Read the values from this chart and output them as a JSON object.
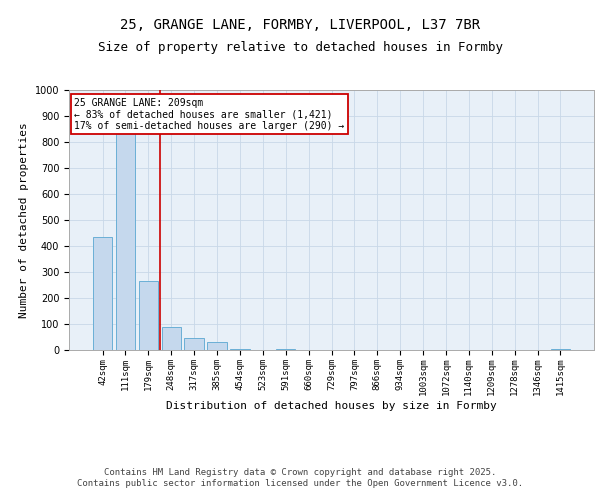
{
  "title_line1": "25, GRANGE LANE, FORMBY, LIVERPOOL, L37 7BR",
  "title_line2": "Size of property relative to detached houses in Formby",
  "xlabel": "Distribution of detached houses by size in Formby",
  "ylabel": "Number of detached properties",
  "categories": [
    "42sqm",
    "111sqm",
    "179sqm",
    "248sqm",
    "317sqm",
    "385sqm",
    "454sqm",
    "523sqm",
    "591sqm",
    "660sqm",
    "729sqm",
    "797sqm",
    "866sqm",
    "934sqm",
    "1003sqm",
    "1072sqm",
    "1140sqm",
    "1209sqm",
    "1278sqm",
    "1346sqm",
    "1415sqm"
  ],
  "values": [
    435,
    835,
    265,
    90,
    45,
    30,
    5,
    0,
    5,
    0,
    0,
    0,
    0,
    0,
    0,
    0,
    0,
    0,
    0,
    0,
    5
  ],
  "bar_color": "#c5d8ed",
  "bar_edge_color": "#6aafd6",
  "grid_color": "#c8d8e8",
  "background_color": "#e8f0f8",
  "annotation_text": "25 GRANGE LANE: 209sqm\n← 83% of detached houses are smaller (1,421)\n17% of semi-detached houses are larger (290) →",
  "annotation_box_color": "#cc0000",
  "vline_color": "#cc0000",
  "vline_x_index": 2.5,
  "ylim": [
    0,
    1000
  ],
  "yticks": [
    0,
    100,
    200,
    300,
    400,
    500,
    600,
    700,
    800,
    900,
    1000
  ],
  "footer_line1": "Contains HM Land Registry data © Crown copyright and database right 2025.",
  "footer_line2": "Contains public sector information licensed under the Open Government Licence v3.0.",
  "title_fontsize": 10,
  "subtitle_fontsize": 9,
  "tick_fontsize": 6.5,
  "label_fontsize": 8,
  "footer_fontsize": 6.5,
  "annotation_fontsize": 7
}
